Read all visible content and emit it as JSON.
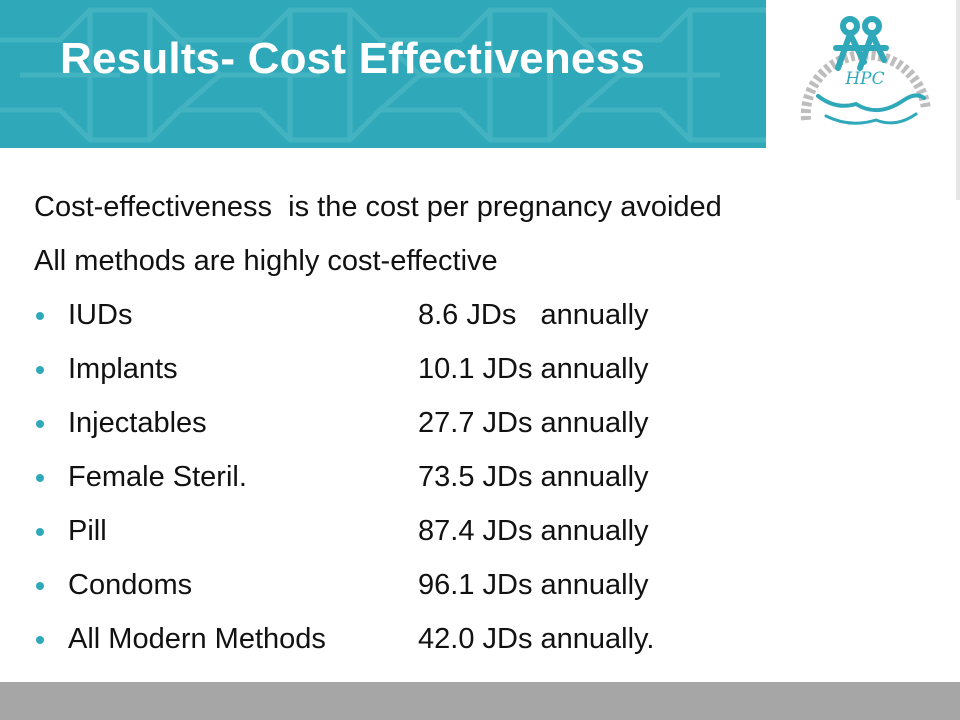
{
  "header": {
    "title": "Results- Cost Effectiveness",
    "accent_color": "#2fa9b9"
  },
  "logo": {
    "text": "HPC",
    "icon": "hpc-logo-icon"
  },
  "content": {
    "line1": "Cost-effectiveness  is the cost per pregnancy avoided",
    "line2": "All methods are highly cost-effective",
    "items": [
      {
        "method": "IUDs",
        "cost": "8.6 JDs   annually"
      },
      {
        "method": "Implants",
        "cost": "10.1 JDs annually"
      },
      {
        "method": "Injectables",
        "cost": "27.7 JDs annually"
      },
      {
        "method": "Female Steril.",
        "cost": "73.5 JDs annually"
      },
      {
        "method": "Pill",
        "cost": "87.4 JDs annually"
      },
      {
        "method": "Condoms",
        "cost": "96.1 JDs annually"
      },
      {
        "method": "All Modern Methods",
        "cost": "42.0 JDs annually."
      }
    ]
  }
}
